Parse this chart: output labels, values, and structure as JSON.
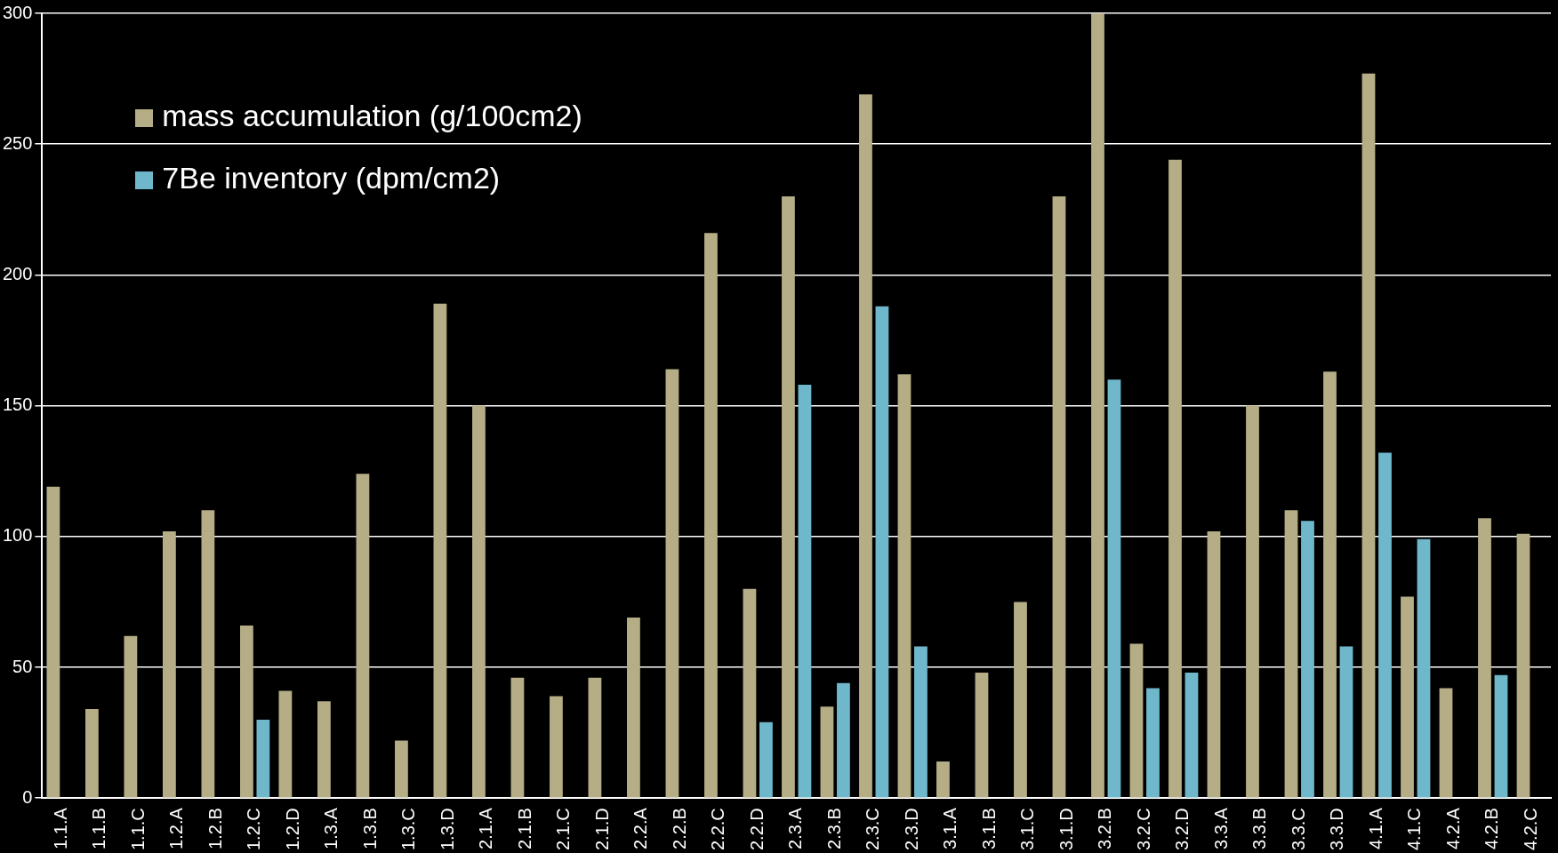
{
  "chart_data": {
    "type": "bar",
    "categories": [
      "1.1.A",
      "1.1.B",
      "1.1.C",
      "1.2.A",
      "1.2.B",
      "1.2.C",
      "1.2.D",
      "1.3.A",
      "1.3.B",
      "1.3.C",
      "1.3.D",
      "2.1.A",
      "2.1.B",
      "2.1.C",
      "2.1.D",
      "2.2.A",
      "2.2.B",
      "2.2.C",
      "2.2.D",
      "2.3.A",
      "2.3.B",
      "2.3.C",
      "2.3.D",
      "3.1.A",
      "3.1.B",
      "3.1.C",
      "3.1.D",
      "3.2.B",
      "3.2.C",
      "3.2.D",
      "3.3.A",
      "3.3.B",
      "3.3.C",
      "3.3.D",
      "4.1.A",
      "4.1.C",
      "4.2.A",
      "4.2.B",
      "4.2.C"
    ],
    "series": [
      {
        "name": "mass accumulation (g/100cm2)",
        "color": "#b5ad85",
        "values": [
          119,
          34,
          62,
          102,
          110,
          66,
          41,
          37,
          124,
          22,
          189,
          150,
          46,
          39,
          46,
          69,
          164,
          216,
          80,
          230,
          35,
          269,
          162,
          14,
          48,
          75,
          230,
          300,
          59,
          244,
          102,
          150,
          110,
          163,
          277,
          77,
          42,
          107,
          101
        ]
      },
      {
        "name": "7Be inventory (dpm/cm2)",
        "color": "#6fb8cc",
        "values": [
          null,
          null,
          null,
          null,
          null,
          30,
          null,
          null,
          null,
          null,
          null,
          null,
          null,
          null,
          null,
          null,
          null,
          null,
          29,
          158,
          44,
          188,
          58,
          null,
          null,
          null,
          null,
          160,
          42,
          48,
          null,
          null,
          106,
          58,
          132,
          99,
          null,
          47,
          null
        ]
      }
    ],
    "ylim": [
      0,
      300
    ],
    "yticks": [
      0,
      50,
      100,
      150,
      200,
      250,
      300
    ],
    "grid": "y",
    "legend": "top left"
  }
}
